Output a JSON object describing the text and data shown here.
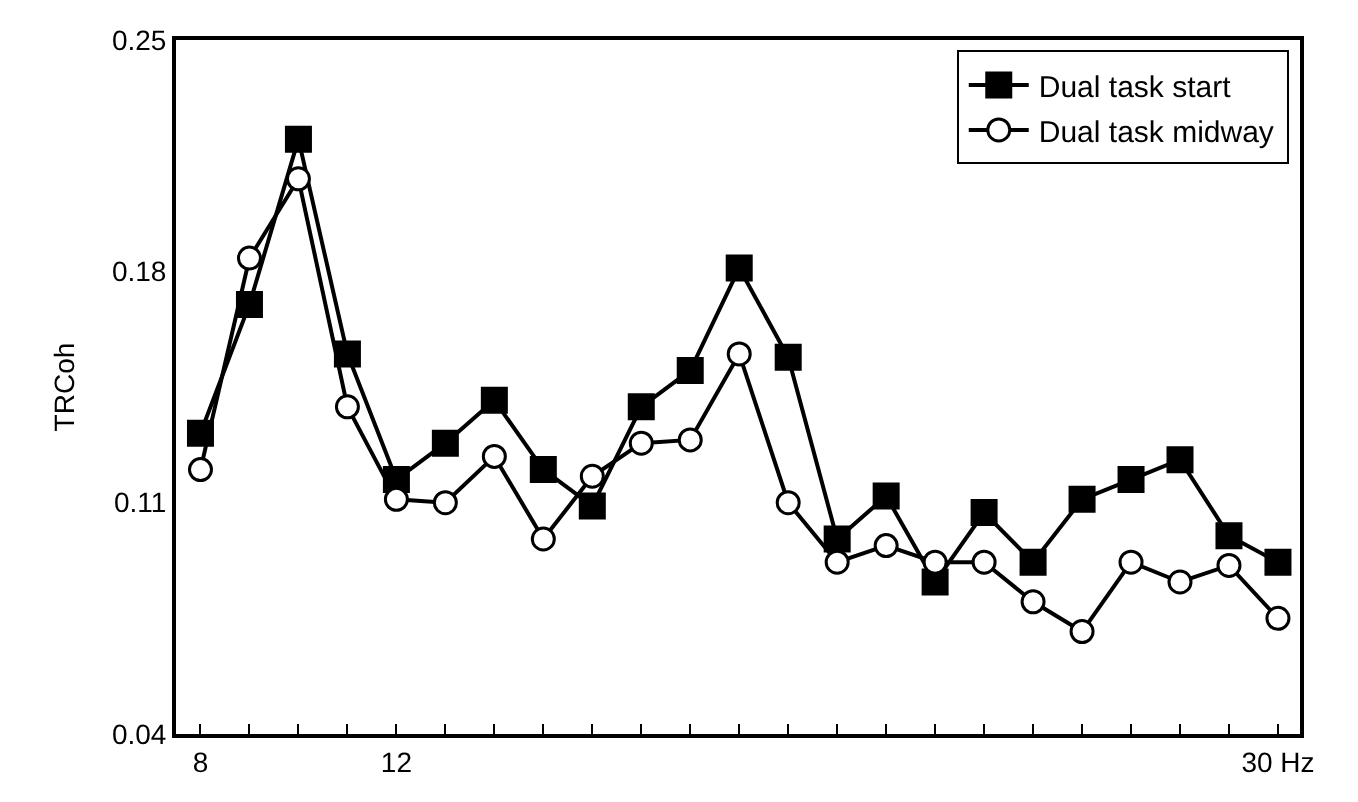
{
  "chart_data": {
    "type": "line",
    "ylabel": "TRCoh",
    "x": [
      8,
      9,
      10,
      11,
      12,
      13,
      14,
      15,
      16,
      17,
      18,
      19,
      20,
      21,
      22,
      23,
      24,
      25,
      26,
      27,
      28,
      29,
      30
    ],
    "series": [
      {
        "name": "Dual task start",
        "color": "#000000",
        "marker": "square",
        "values": [
          0.131,
          0.17,
          0.22,
          0.155,
          0.117,
          0.128,
          0.141,
          0.12,
          0.109,
          0.139,
          0.15,
          0.181,
          0.154,
          0.099,
          0.112,
          0.086,
          0.107,
          0.092,
          0.111,
          0.117,
          0.123,
          0.1,
          0.092
        ]
      },
      {
        "name": "Dual task midway",
        "color": "#000000",
        "marker": "circle",
        "values": [
          0.12,
          0.184,
          0.208,
          0.139,
          0.111,
          0.11,
          0.124,
          0.099,
          0.118,
          0.128,
          0.129,
          0.155,
          0.11,
          0.092,
          0.097,
          0.092,
          0.092,
          0.08,
          0.071,
          0.092,
          0.086,
          0.091,
          0.075
        ]
      }
    ],
    "xlim": [
      7.5,
      30.45
    ],
    "xticks": [
      {
        "value": 8,
        "label": "8"
      },
      {
        "value": 9,
        "label": null
      },
      {
        "value": 10,
        "label": null
      },
      {
        "value": 11,
        "label": null
      },
      {
        "value": 12,
        "label": "12"
      },
      {
        "value": 13,
        "label": null
      },
      {
        "value": 14,
        "label": null
      },
      {
        "value": 15,
        "label": null
      },
      {
        "value": 16,
        "label": null
      },
      {
        "value": 17,
        "label": null
      },
      {
        "value": 18,
        "label": null
      },
      {
        "value": 19,
        "label": null
      },
      {
        "value": 20,
        "label": null
      },
      {
        "value": 21,
        "label": null
      },
      {
        "value": 22,
        "label": null
      },
      {
        "value": 23,
        "label": null
      },
      {
        "value": 24,
        "label": null
      },
      {
        "value": 25,
        "label": null
      },
      {
        "value": 26,
        "label": null
      },
      {
        "value": 27,
        "label": null
      },
      {
        "value": 28,
        "label": null
      },
      {
        "value": 29,
        "label": null
      },
      {
        "value": 30,
        "label": "30 Hz"
      }
    ],
    "ylim": [
      0.04,
      0.25
    ],
    "yticks": [
      0.04,
      0.11,
      0.18,
      0.25
    ],
    "legend": "top right",
    "line_style": "solid"
  }
}
